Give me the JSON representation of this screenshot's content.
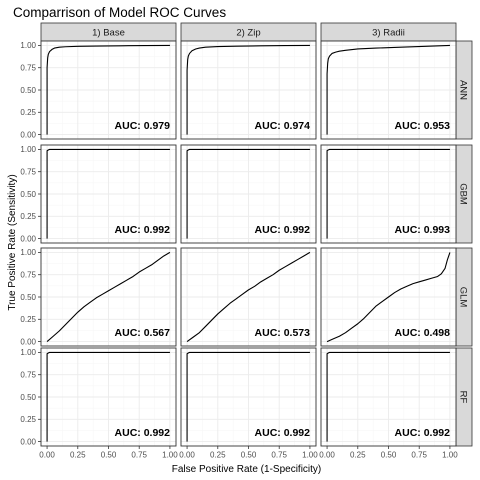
{
  "chart_data": {
    "type": "line",
    "title": "Comparrison of Model ROC Curves",
    "xlabel": "False Positive Rate (1-Specificity)",
    "ylabel": "True Positive Rate (Sensitivity)",
    "xlim": [
      0,
      1
    ],
    "ylim": [
      0,
      1
    ],
    "x_ticks": [
      "0.00",
      "0.25",
      "0.50",
      "0.75",
      "1.00"
    ],
    "y_ticks": [
      "0.00",
      "0.25",
      "0.50",
      "0.75",
      "1.00"
    ],
    "grid": true,
    "columns": [
      "1) Base",
      "2) Zip",
      "3) Radii"
    ],
    "rows": [
      "ANN",
      "GBM",
      "GLM",
      "RF"
    ],
    "auc_labels": [
      [
        "AUC: 0.979",
        "AUC: 0.974",
        "AUC: 0.953"
      ],
      [
        "AUC: 0.992",
        "AUC: 0.992",
        "AUC: 0.993"
      ],
      [
        "AUC: 0.567",
        "AUC: 0.573",
        "AUC: 0.498"
      ],
      [
        "AUC: 0.992",
        "AUC: 0.992",
        "AUC: 0.992"
      ]
    ],
    "curves": [
      [
        {
          "x": [
            0,
            0.0,
            0.005,
            0.01,
            0.02,
            0.04,
            0.06,
            0.1,
            0.15,
            0.25,
            0.4,
            0.6,
            0.8,
            1.0
          ],
          "y": [
            0,
            0.75,
            0.86,
            0.9,
            0.93,
            0.955,
            0.97,
            0.98,
            0.985,
            0.99,
            0.993,
            0.996,
            0.998,
            1.0
          ]
        },
        {
          "x": [
            0,
            0.0,
            0.005,
            0.01,
            0.02,
            0.04,
            0.07,
            0.1,
            0.15,
            0.25,
            0.4,
            0.6,
            0.8,
            1.0
          ],
          "y": [
            0,
            0.72,
            0.84,
            0.88,
            0.91,
            0.94,
            0.96,
            0.97,
            0.98,
            0.987,
            0.991,
            0.995,
            0.998,
            1.0
          ]
        },
        {
          "x": [
            0,
            0.0,
            0.005,
            0.01,
            0.02,
            0.04,
            0.07,
            0.1,
            0.15,
            0.25,
            0.4,
            0.6,
            0.8,
            1.0
          ],
          "y": [
            0,
            0.68,
            0.8,
            0.85,
            0.88,
            0.91,
            0.925,
            0.935,
            0.945,
            0.96,
            0.97,
            0.98,
            0.99,
            1.0
          ]
        }
      ],
      [
        {
          "x": [
            0,
            0.0,
            0.01,
            0.02,
            0.5,
            1.0
          ],
          "y": [
            0,
            0.985,
            0.993,
            1.0,
            1.0,
            1.0
          ]
        },
        {
          "x": [
            0,
            0.0,
            0.01,
            0.02,
            0.5,
            1.0
          ],
          "y": [
            0,
            0.985,
            0.993,
            1.0,
            1.0,
            1.0
          ]
        },
        {
          "x": [
            0,
            0.0,
            0.01,
            0.02,
            0.5,
            1.0
          ],
          "y": [
            0,
            0.986,
            0.994,
            1.0,
            1.0,
            1.0
          ]
        }
      ],
      [
        {
          "x": [
            0,
            0.05,
            0.1,
            0.15,
            0.2,
            0.25,
            0.3,
            0.35,
            0.4,
            0.45,
            0.5,
            0.55,
            0.6,
            0.65,
            0.7,
            0.75,
            0.8,
            0.85,
            0.9,
            0.95,
            1.0
          ],
          "y": [
            0,
            0.06,
            0.12,
            0.19,
            0.26,
            0.33,
            0.39,
            0.44,
            0.49,
            0.53,
            0.57,
            0.61,
            0.65,
            0.69,
            0.73,
            0.78,
            0.82,
            0.86,
            0.91,
            0.96,
            1.0
          ]
        },
        {
          "x": [
            0,
            0.05,
            0.1,
            0.15,
            0.2,
            0.25,
            0.3,
            0.35,
            0.4,
            0.45,
            0.5,
            0.55,
            0.6,
            0.65,
            0.7,
            0.75,
            0.8,
            0.85,
            0.9,
            0.95,
            1.0
          ],
          "y": [
            0,
            0.05,
            0.1,
            0.17,
            0.24,
            0.31,
            0.37,
            0.43,
            0.48,
            0.53,
            0.58,
            0.62,
            0.67,
            0.71,
            0.75,
            0.8,
            0.84,
            0.88,
            0.92,
            0.96,
            1.0
          ]
        },
        {
          "x": [
            0,
            0.05,
            0.1,
            0.15,
            0.2,
            0.25,
            0.3,
            0.35,
            0.4,
            0.45,
            0.5,
            0.55,
            0.6,
            0.65,
            0.7,
            0.75,
            0.8,
            0.85,
            0.9,
            0.93,
            0.96,
            0.98,
            1.0
          ],
          "y": [
            0,
            0.03,
            0.06,
            0.1,
            0.15,
            0.2,
            0.26,
            0.33,
            0.4,
            0.45,
            0.5,
            0.55,
            0.59,
            0.62,
            0.65,
            0.67,
            0.69,
            0.71,
            0.73,
            0.76,
            0.82,
            0.92,
            1.0
          ]
        }
      ],
      [
        {
          "x": [
            0,
            0.0,
            0.01,
            0.02,
            0.5,
            1.0
          ],
          "y": [
            0,
            0.985,
            0.993,
            1.0,
            1.0,
            1.0
          ]
        },
        {
          "x": [
            0,
            0.0,
            0.01,
            0.02,
            0.5,
            1.0
          ],
          "y": [
            0,
            0.985,
            0.993,
            1.0,
            1.0,
            1.0
          ]
        },
        {
          "x": [
            0,
            0.0,
            0.01,
            0.02,
            0.5,
            1.0
          ],
          "y": [
            0,
            0.985,
            0.993,
            1.0,
            1.0,
            1.0
          ]
        }
      ]
    ],
    "colors": {
      "panel_background": "#ffffff",
      "panel_border": "#333333",
      "grid_major": "#ebebeb",
      "grid_minor": "#f5f5f5",
      "strip_background": "#d9d9d9",
      "line": "#000000"
    }
  }
}
